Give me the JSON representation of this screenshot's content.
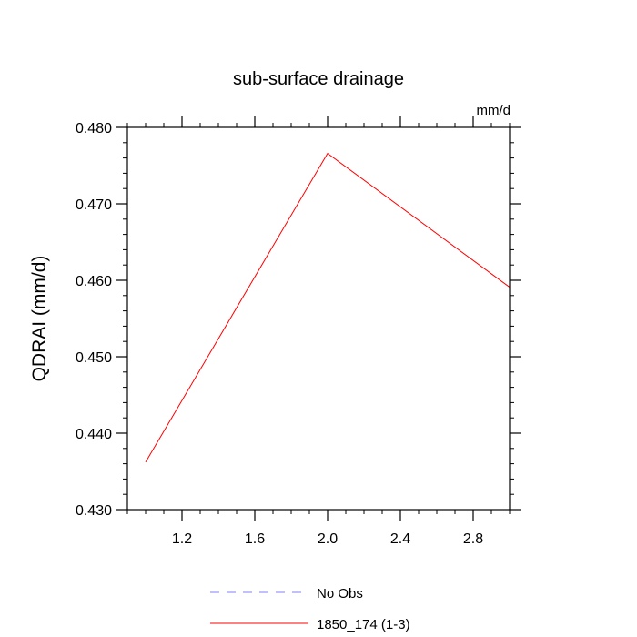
{
  "chart_data": {
    "type": "line",
    "title": "sub-surface drainage",
    "units_label": "mm/d",
    "ylabel": "QDRAI  (mm/d)",
    "xlabel": "",
    "xlim": [
      0.9,
      3.0
    ],
    "ylim": [
      0.43,
      0.48
    ],
    "x_ticks": [
      1.2,
      1.6,
      2.0,
      2.4,
      2.8
    ],
    "x_tick_labels": [
      "1.2",
      "1.6",
      "2.0",
      "2.4",
      "2.8"
    ],
    "x_minor_step": 0.1,
    "y_ticks": [
      0.43,
      0.44,
      0.45,
      0.46,
      0.47,
      0.48
    ],
    "y_tick_labels": [
      "0.430",
      "0.440",
      "0.450",
      "0.460",
      "0.470",
      "0.480"
    ],
    "y_minor_step": 0.002,
    "grid": false,
    "legend_position": "bottom",
    "series": [
      {
        "name": "No Obs",
        "color": "#8080ff",
        "dash": true,
        "x": [],
        "values": []
      },
      {
        "name": "1850_174 (1-3)",
        "color": "#ff0000",
        "dash": false,
        "x": [
          1.0,
          2.0,
          3.0
        ],
        "values": [
          0.4362,
          0.4766,
          0.4591
        ]
      }
    ]
  }
}
